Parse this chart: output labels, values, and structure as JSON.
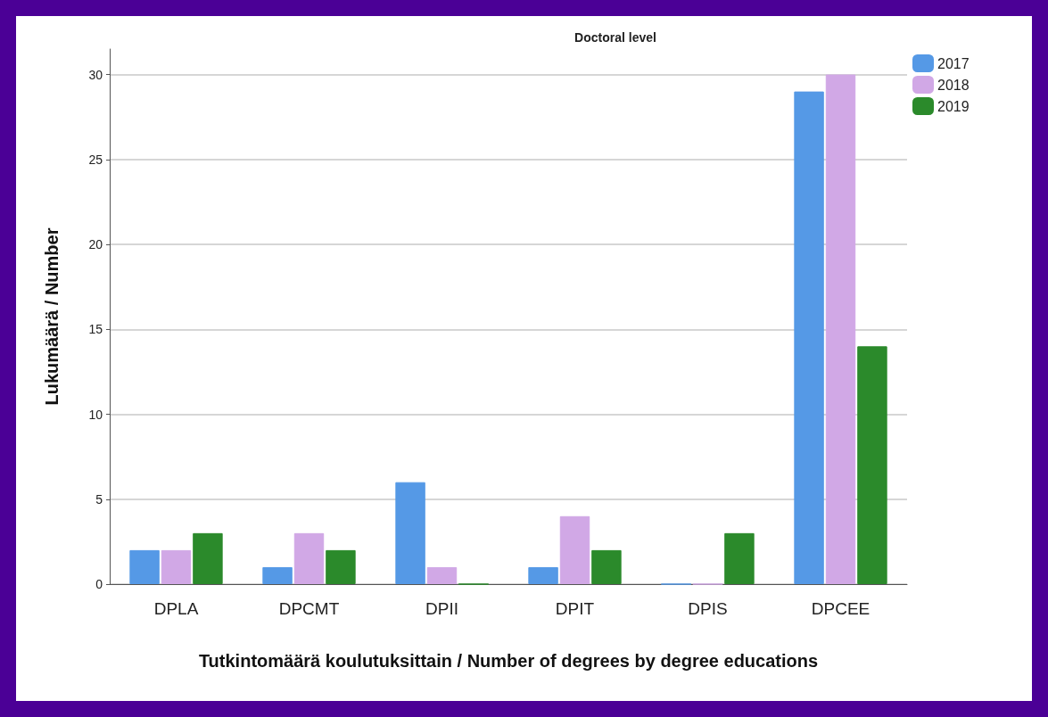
{
  "chart_data": {
    "type": "bar",
    "title": "Doctoral level",
    "xlabel": "Tutkintomäärä koulutuksittain / Number of degrees by degree educations",
    "ylabel": "Lukumäärä / Number",
    "categories": [
      "DPLA",
      "DPCMT",
      "DPII",
      "DPIT",
      "DPIS",
      "DPCEE"
    ],
    "series": [
      {
        "name": "2017",
        "color": "#5599e6",
        "values": [
          2,
          1,
          6,
          1,
          0,
          29
        ]
      },
      {
        "name": "2018",
        "color": "#d1a8e6",
        "values": [
          2,
          3,
          1,
          4,
          0,
          30
        ]
      },
      {
        "name": "2019",
        "color": "#2b8a2b",
        "values": [
          3,
          2,
          0,
          2,
          3,
          14
        ]
      }
    ],
    "ylim": [
      0,
      31.5
    ],
    "yticks": [
      0,
      5,
      10,
      15,
      20,
      25,
      30
    ],
    "grid": "y",
    "legend": "top right"
  }
}
